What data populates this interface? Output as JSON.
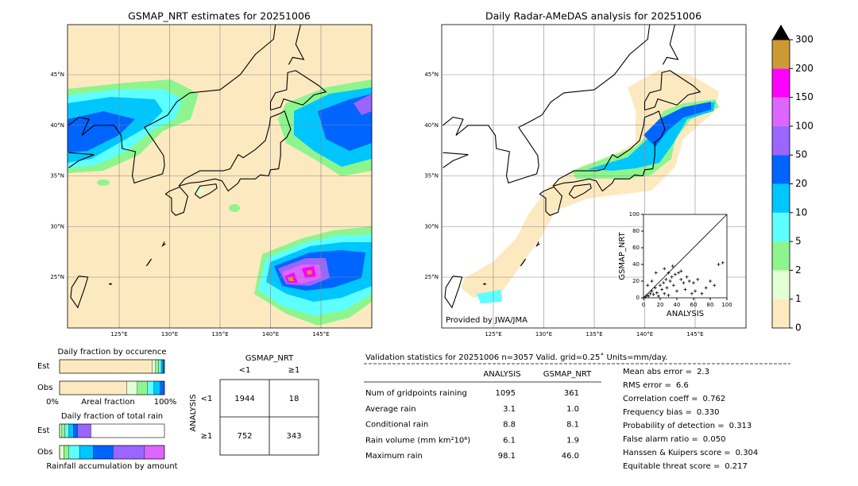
{
  "maps": [
    {
      "title": "GSMAP_NRT estimates for 20251006",
      "lat_labels": [
        "45°N",
        "40°N",
        "35°N",
        "30°N",
        "25°N"
      ],
      "lon_labels": [
        "125°E",
        "130°E",
        "135°E",
        "140°E",
        "145°E"
      ]
    },
    {
      "title": "Daily Radar-AMeDAS analysis for 20251006",
      "lat_labels": [
        "45°N",
        "40°N",
        "35°N",
        "30°N",
        "25°N"
      ],
      "lon_labels": [
        "125°E",
        "130°E",
        "135°E",
        "140°E",
        "145°E"
      ],
      "credit": "Provided by JWA/JMA"
    }
  ],
  "colorbar": {
    "ticks": [
      0,
      1,
      2,
      5,
      10,
      20,
      50,
      100,
      150,
      200,
      300
    ],
    "colors": [
      "#fde9c0",
      "#e2ffd6",
      "#8ef58e",
      "#5effff",
      "#00c6ff",
      "#0064ff",
      "#9b66ff",
      "#dc66ff",
      "#ff00ff",
      "#cc9933"
    ]
  },
  "chart_data": {
    "type": "scatter",
    "xlabel": "ANALYSIS",
    "ylabel": "GSMAP_NRT",
    "xlim": [
      0,
      100
    ],
    "ylim": [
      0,
      100
    ],
    "xticks": [
      0,
      20,
      40,
      60,
      80,
      100
    ],
    "yticks": [
      0,
      20,
      40,
      60,
      80,
      100
    ],
    "x": [
      2,
      4,
      6,
      8,
      10,
      12,
      14,
      16,
      18,
      20,
      22,
      24,
      25,
      27,
      28,
      30,
      32,
      34,
      36,
      38,
      40,
      42,
      45,
      48,
      50,
      52,
      55,
      58,
      60,
      62,
      65,
      70,
      75,
      80,
      85,
      90,
      95,
      15,
      25,
      35,
      45,
      5,
      10,
      30
    ],
    "values": [
      1,
      3,
      2,
      5,
      8,
      4,
      12,
      6,
      2,
      15,
      10,
      18,
      5,
      22,
      12,
      3,
      20,
      25,
      15,
      28,
      8,
      30,
      22,
      18,
      10,
      25,
      20,
      5,
      18,
      8,
      22,
      5,
      12,
      20,
      15,
      40,
      42,
      30,
      35,
      38,
      32,
      15,
      20,
      30
    ],
    "color": "#000000"
  },
  "fraction_occurrence": {
    "title": "Daily fraction by occurence",
    "rows": [
      {
        "label": "Est",
        "values": [
          0.885,
          0.03,
          0.03,
          0.025,
          0.015,
          0.015
        ]
      },
      {
        "label": "Obs",
        "values": [
          0.64,
          0.1,
          0.1,
          0.06,
          0.06,
          0.04
        ]
      }
    ],
    "xmin_label": "0%",
    "xlabel": "Areal fraction",
    "xmax_label": "100%"
  },
  "fraction_rain": {
    "title": "Daily fraction of total rain",
    "rows": [
      {
        "label": "Est",
        "values": [
          0.02,
          0.03,
          0.04,
          0.04,
          0.04,
          0.13
        ]
      },
      {
        "label": "Obs",
        "values": [
          0.04,
          0.05,
          0.1,
          0.13,
          0.19,
          0.3,
          0.19
        ]
      }
    ],
    "xlabel": "Rainfall accumulation by amount"
  },
  "contingency": {
    "col_title": "GSMAP_NRT",
    "col_labels": [
      "<1",
      "≥1"
    ],
    "row_title": "ANALYSIS",
    "row_labels": [
      "<1",
      "≥1"
    ],
    "cells": [
      [
        1944,
        18
      ],
      [
        752,
        343
      ]
    ]
  },
  "stats": {
    "header": "Validation statistics for 20251006  n=3057 Valid. grid=0.25˚ Units=mm/day.",
    "columns": [
      "ANALYSIS",
      "GSMAP_NRT"
    ],
    "rows": [
      [
        "Num of gridpoints raining",
        "1095",
        "361"
      ],
      [
        "Average rain",
        "3.1",
        "1.0"
      ],
      [
        "Conditional rain",
        "8.8",
        "8.1"
      ],
      [
        "Rain volume (mm km²10⁶)",
        "6.1",
        "1.9"
      ],
      [
        "Maximum rain",
        "98.1",
        "46.0"
      ]
    ],
    "scores": [
      {
        "label": "Mean abs error =",
        "value": "2.3"
      },
      {
        "label": "RMS error =",
        "value": "6.6"
      },
      {
        "label": "Correlation coeff =",
        "value": "0.762"
      },
      {
        "label": "Frequency bias =",
        "value": "0.330"
      },
      {
        "label": "Probability of detection =",
        "value": "0.313"
      },
      {
        "label": "False alarm ratio =",
        "value": "0.050"
      },
      {
        "label": "Hanssen & Kuipers score =",
        "value": "0.304"
      },
      {
        "label": "Equitable threat score =",
        "value": "0.217"
      }
    ]
  }
}
